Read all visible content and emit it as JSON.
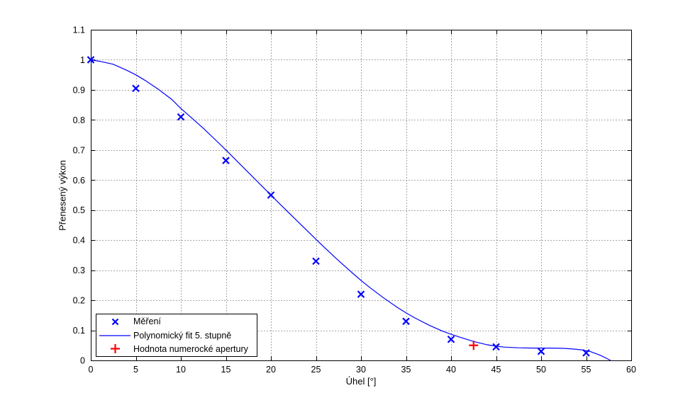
{
  "chart_data": {
    "type": "line",
    "title": "",
    "xlabel": "Úhel [°]",
    "ylabel": "Přenesený výkon",
    "xlim": [
      0,
      60
    ],
    "ylim": [
      0,
      1.1
    ],
    "x_ticks": [
      0,
      5,
      10,
      15,
      20,
      25,
      30,
      35,
      40,
      45,
      50,
      55,
      60
    ],
    "x_tick_labels": [
      "0",
      "5",
      "10",
      "15",
      "20",
      "25",
      "30",
      "35",
      "40",
      "45",
      "50",
      "55",
      "60"
    ],
    "y_ticks": [
      0,
      0.1,
      0.2,
      0.3,
      0.4,
      0.5,
      0.6,
      0.7,
      0.8,
      0.9,
      1.0,
      1.1
    ],
    "y_tick_labels": [
      "0",
      "0.1",
      "0.2",
      "0.3",
      "0.4",
      "0.5",
      "0.6",
      "0.7",
      "0.8",
      "0.9",
      "1",
      "1.1"
    ],
    "grid": true,
    "grid_style": "dotted",
    "legend_position": "inside-bottom-left",
    "series": [
      {
        "name": "Měření",
        "type": "scatter",
        "marker": "x",
        "color": "#0000ff",
        "x": [
          0,
          5,
          10,
          15,
          20,
          25,
          30,
          35,
          40,
          45,
          50,
          55
        ],
        "y": [
          1.0,
          0.905,
          0.81,
          0.665,
          0.55,
          0.33,
          0.22,
          0.13,
          0.07,
          0.045,
          0.03,
          0.025
        ]
      },
      {
        "name": "Polynomický fit 5. stupně",
        "type": "line",
        "color": "#0000ff",
        "points": [
          [
            0,
            1.0
          ],
          [
            1,
            0.995
          ],
          [
            2.5,
            0.985
          ],
          [
            4,
            0.965
          ],
          [
            5,
            0.95
          ],
          [
            6,
            0.932
          ],
          [
            7.5,
            0.902
          ],
          [
            9,
            0.868
          ],
          [
            10,
            0.838
          ],
          [
            11,
            0.812
          ],
          [
            12.5,
            0.772
          ],
          [
            14,
            0.729
          ],
          [
            15,
            0.7
          ],
          [
            16,
            0.67
          ],
          [
            17.5,
            0.625
          ],
          [
            19,
            0.58
          ],
          [
            20,
            0.55
          ],
          [
            21,
            0.52
          ],
          [
            22.5,
            0.476
          ],
          [
            24,
            0.432
          ],
          [
            25,
            0.403
          ],
          [
            26,
            0.374
          ],
          [
            27.5,
            0.332
          ],
          [
            29,
            0.292
          ],
          [
            30,
            0.266
          ],
          [
            31,
            0.242
          ],
          [
            32.5,
            0.208
          ],
          [
            34,
            0.177
          ],
          [
            35,
            0.158
          ],
          [
            36,
            0.141
          ],
          [
            37.5,
            0.118
          ],
          [
            39,
            0.098
          ],
          [
            40,
            0.087
          ],
          [
            41,
            0.077
          ],
          [
            42.5,
            0.063
          ],
          [
            44,
            0.052
          ],
          [
            45,
            0.047
          ],
          [
            46,
            0.044
          ],
          [
            47.5,
            0.042
          ],
          [
            49,
            0.041
          ],
          [
            50,
            0.041
          ],
          [
            51,
            0.041
          ],
          [
            52.5,
            0.04
          ],
          [
            53.5,
            0.038
          ],
          [
            54.5,
            0.035
          ],
          [
            55.5,
            0.029
          ],
          [
            56.5,
            0.018
          ],
          [
            57.2,
            0.008
          ],
          [
            57.7,
            0.0
          ]
        ]
      },
      {
        "name": "Hodnota numerocké apertury",
        "type": "scatter",
        "marker": "+",
        "color": "#ff0000",
        "x": [
          42.5
        ],
        "y": [
          0.05
        ]
      }
    ],
    "colors": {
      "series_blue": "#0000ff",
      "aperture_red": "#ff0000",
      "frame": "#000000",
      "grid": "#4d4d4d",
      "text": "#000000",
      "background": "#ffffff"
    }
  }
}
